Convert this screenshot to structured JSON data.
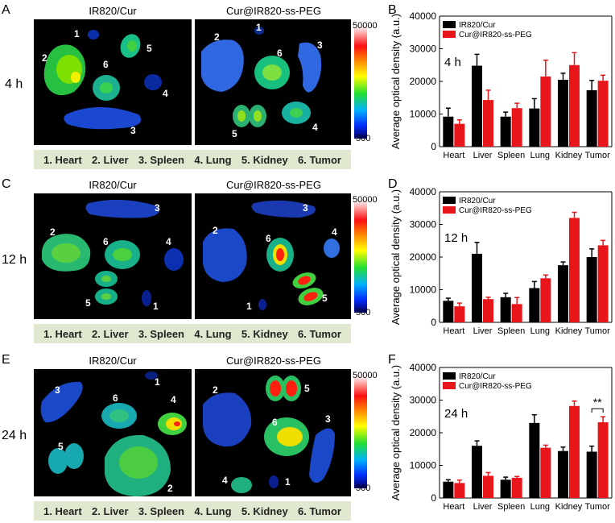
{
  "panel_labels": [
    "A",
    "B",
    "C",
    "D",
    "E",
    "F"
  ],
  "column_titles": {
    "left": "IR820/Cur",
    "right": "Cur@IR820-ss-PEG"
  },
  "timepoints": [
    "4 h",
    "12 h",
    "24 h"
  ],
  "colorbar": {
    "max": "50000",
    "min": "500"
  },
  "organ_legend": [
    "1. Heart",
    "2. Liver",
    "3. Spleen",
    "4. Lung",
    "5. Kidney",
    "6. Tumor"
  ],
  "colors": {
    "irCur": "#000000",
    "nano": "#e8151b",
    "legend_bg": "#e0e9cf"
  },
  "chart_data": [
    {
      "type": "bar",
      "annotation": "4 h",
      "title": "",
      "categories": [
        "Heart",
        "Liver",
        "Spleen",
        "Lung",
        "Kidney",
        "Tumor"
      ],
      "ylabel": "Average optical density (a.u.)",
      "xlabel": "",
      "ylim": [
        0,
        40000
      ],
      "yticks": [
        0,
        10000,
        20000,
        30000,
        40000
      ],
      "series": [
        {
          "name": "IR820/Cur",
          "values": [
            9200,
            24800,
            9200,
            11700,
            20500,
            17300
          ],
          "errors": [
            2600,
            3500,
            1400,
            3000,
            2000,
            3000
          ]
        },
        {
          "name": "Cur@IR820-ss-PEG",
          "values": [
            7000,
            14300,
            11800,
            21500,
            25000,
            20200
          ],
          "errors": [
            1200,
            3000,
            1500,
            5000,
            3800,
            1700
          ]
        }
      ],
      "significance": null
    },
    {
      "type": "bar",
      "annotation": "12 h",
      "title": "",
      "categories": [
        "Heart",
        "Liver",
        "Spleen",
        "Lung",
        "Kidney",
        "Tumor"
      ],
      "ylabel": "Average optical density (a.u.)",
      "xlabel": "",
      "ylim": [
        0,
        40000
      ],
      "yticks": [
        0,
        10000,
        20000,
        30000,
        40000
      ],
      "series": [
        {
          "name": "IR820/Cur",
          "values": [
            6600,
            21000,
            7700,
            10500,
            17500,
            20000
          ],
          "errors": [
            800,
            3500,
            1200,
            2000,
            1000,
            2500
          ]
        },
        {
          "name": "Cur@IR820-ss-PEG",
          "values": [
            4900,
            7100,
            5600,
            13500,
            32000,
            23600
          ],
          "errors": [
            1000,
            600,
            2000,
            1000,
            1700,
            1500
          ]
        }
      ],
      "significance": null
    },
    {
      "type": "bar",
      "annotation": "24 h",
      "title": "",
      "categories": [
        "Heart",
        "Liver",
        "Spleen",
        "Lung",
        "Kidney",
        "Tumor"
      ],
      "ylabel": "Average optical density (a.u.)",
      "xlabel": "",
      "ylim": [
        0,
        40000
      ],
      "yticks": [
        0,
        10000,
        20000,
        30000,
        40000
      ],
      "series": [
        {
          "name": "IR820/Cur",
          "values": [
            5000,
            16000,
            5600,
            23000,
            14400,
            14200
          ],
          "errors": [
            600,
            1500,
            800,
            2500,
            1200,
            1700
          ]
        },
        {
          "name": "Cur@IR820-ss-PEG",
          "values": [
            4600,
            6800,
            6200,
            15400,
            28200,
            23200
          ],
          "errors": [
            900,
            1000,
            400,
            800,
            1500,
            1700
          ]
        }
      ],
      "significance": {
        "label": "**",
        "category": "Tumor"
      }
    }
  ]
}
